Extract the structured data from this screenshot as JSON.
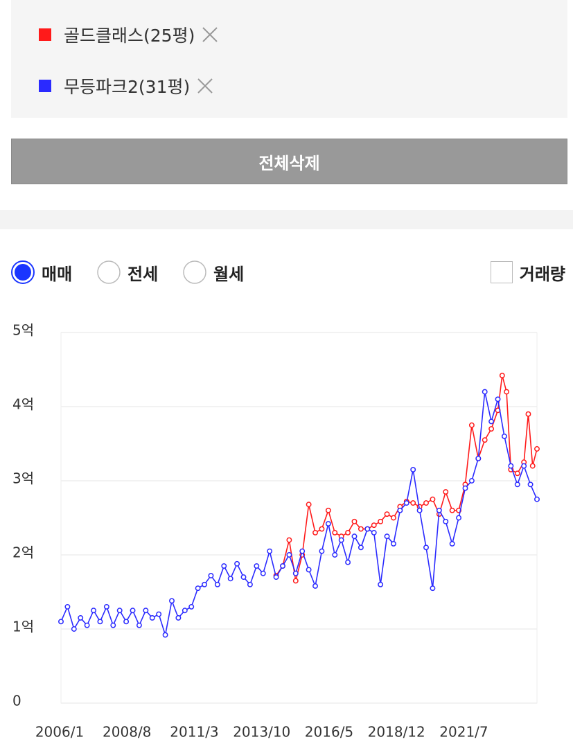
{
  "delete_all": "전체삭제",
  "trade_types": [
    "매매",
    "전세",
    "월세"
  ],
  "selected_trade_type": 0,
  "volume_checkbox": "거래량",
  "chart_data": {
    "type": "line",
    "xlim": [
      "2006/1",
      "2024/4"
    ],
    "xticks": [
      "2006/1",
      "2008/8",
      "2011/3",
      "2013/10",
      "2016/5",
      "2018/12",
      "2021/7"
    ],
    "ylim": [
      0,
      5
    ],
    "yticks": [
      0,
      {
        "value": 1,
        "label": "1억"
      },
      {
        "value": 2,
        "label": "2억"
      },
      {
        "value": 3,
        "label": "3억"
      },
      {
        "value": 4,
        "label": "4억"
      },
      {
        "value": 5,
        "label": "5억"
      }
    ],
    "grid": true,
    "series": [
      {
        "name": "골드클래스(25평)",
        "color": "#ff1a1a",
        "x": [
          "2014/4",
          "2014/7",
          "2014/10",
          "2015/1",
          "2015/4",
          "2015/7",
          "2015/10",
          "2016/1",
          "2016/4",
          "2016/7",
          "2016/10",
          "2017/1",
          "2017/4",
          "2017/7",
          "2017/10",
          "2018/1",
          "2018/4",
          "2018/7",
          "2018/10",
          "2019/1",
          "2019/4",
          "2019/7",
          "2019/10",
          "2020/1",
          "2020/4",
          "2020/7",
          "2020/10",
          "2021/1",
          "2021/4",
          "2021/7",
          "2021/10",
          "2022/1",
          "2022/4",
          "2022/7",
          "2022/10",
          "2022/12",
          "2023/2",
          "2023/4",
          "2023/7",
          "2023/10",
          "2023/12",
          "2024/2",
          "2024/4"
        ],
        "values": [
          1.72,
          1.85,
          2.2,
          1.65,
          2.0,
          2.68,
          2.3,
          2.35,
          2.6,
          2.3,
          2.25,
          2.3,
          2.45,
          2.35,
          2.35,
          2.4,
          2.45,
          2.55,
          2.5,
          2.65,
          2.72,
          2.7,
          2.65,
          2.7,
          2.75,
          2.55,
          2.85,
          2.6,
          2.6,
          2.95,
          3.75,
          3.3,
          3.55,
          3.7,
          3.95,
          4.42,
          4.2,
          3.15,
          3.1,
          3.25,
          3.9,
          3.2,
          3.43
        ]
      },
      {
        "name": "무등파크2(31평)",
        "color": "#2a2aff",
        "x": [
          "2006/1",
          "2006/4",
          "2006/7",
          "2006/10",
          "2007/1",
          "2007/4",
          "2007/7",
          "2007/10",
          "2008/1",
          "2008/4",
          "2008/7",
          "2008/10",
          "2009/1",
          "2009/4",
          "2009/7",
          "2009/10",
          "2010/1",
          "2010/4",
          "2010/7",
          "2010/10",
          "2011/1",
          "2011/4",
          "2011/7",
          "2011/10",
          "2012/1",
          "2012/4",
          "2012/7",
          "2012/10",
          "2013/1",
          "2013/4",
          "2013/7",
          "2013/10",
          "2014/1",
          "2014/4",
          "2014/7",
          "2014/10",
          "2015/1",
          "2015/4",
          "2015/7",
          "2015/10",
          "2016/1",
          "2016/4",
          "2016/7",
          "2016/10",
          "2017/1",
          "2017/4",
          "2017/7",
          "2017/10",
          "2018/1",
          "2018/4",
          "2018/7",
          "2018/10",
          "2019/1",
          "2019/4",
          "2019/7",
          "2019/10",
          "2020/1",
          "2020/4",
          "2020/7",
          "2020/10",
          "2021/1",
          "2021/4",
          "2021/7",
          "2021/10",
          "2022/1",
          "2022/4",
          "2022/7",
          "2022/10",
          "2023/1",
          "2023/4",
          "2023/7",
          "2023/10",
          "2024/1",
          "2024/4"
        ],
        "values": [
          1.1,
          1.3,
          1.0,
          1.15,
          1.05,
          1.25,
          1.1,
          1.3,
          1.05,
          1.25,
          1.1,
          1.25,
          1.05,
          1.25,
          1.15,
          1.2,
          0.92,
          1.38,
          1.15,
          1.25,
          1.3,
          1.55,
          1.6,
          1.72,
          1.6,
          1.85,
          1.68,
          1.88,
          1.7,
          1.6,
          1.85,
          1.75,
          2.05,
          1.7,
          1.85,
          2.0,
          1.75,
          2.05,
          1.8,
          1.58,
          2.05,
          2.42,
          2.0,
          2.2,
          1.9,
          2.25,
          2.1,
          2.35,
          2.3,
          1.6,
          2.25,
          2.15,
          2.6,
          2.7,
          3.15,
          2.6,
          2.1,
          1.55,
          2.6,
          2.45,
          2.15,
          2.5,
          2.9,
          3.0,
          3.3,
          4.2,
          3.8,
          4.1,
          3.6,
          3.2,
          2.95,
          3.2,
          2.95,
          2.75
        ]
      }
    ]
  }
}
